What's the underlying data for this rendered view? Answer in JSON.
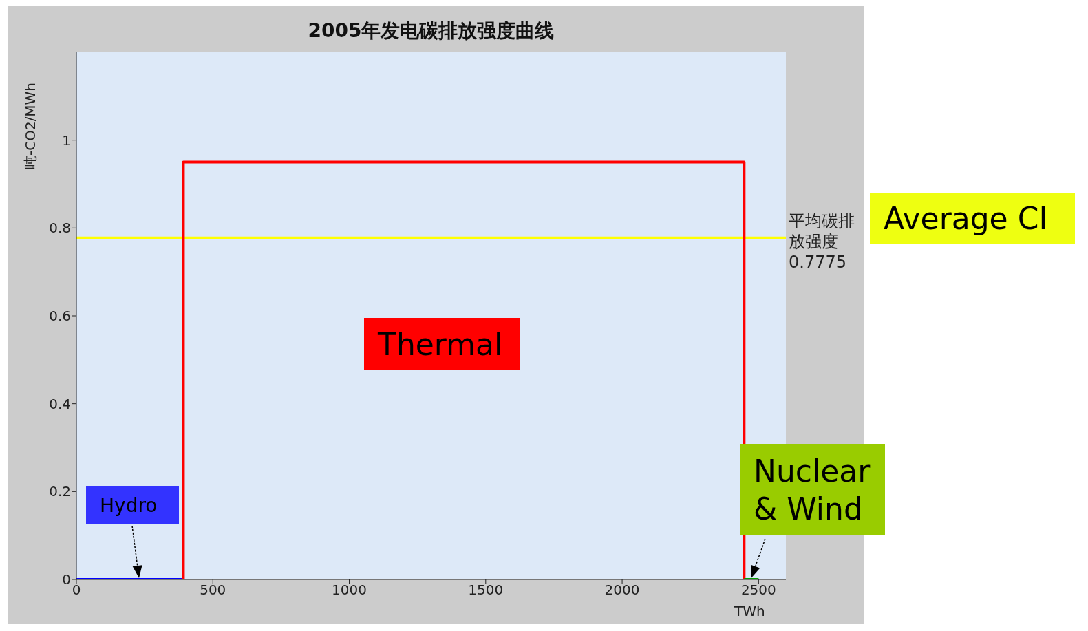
{
  "chart_data": {
    "type": "line",
    "title": "2005年发电碳排放强度曲线",
    "ylabel": "吨-CO2/MWh",
    "xlabel": "TWh",
    "series": [
      {
        "color": "#0000ff",
        "x": [
          0,
          392
        ],
        "values": [
          0,
          0
        ]
      },
      {
        "color": "#ff0000",
        "x": [
          392,
          392,
          2447,
          2447
        ],
        "values": [
          0,
          0.95,
          0.95,
          0
        ]
      },
      {
        "color": "#00a000",
        "x": [
          2447,
          2500
        ],
        "values": [
          0,
          0
        ]
      }
    ],
    "ref_lines": [
      {
        "axis": "y",
        "value": 0.7775,
        "label": "平均碳排放强度 0.7775",
        "color": "#ffff00"
      }
    ],
    "annotations": [
      "Hydro",
      "Thermal",
      {
        "text": "Nuclear & Wind",
        "x": 2473,
        "y": 0
      },
      "Average CI"
    ],
    "xlim": [
      0,
      2600
    ],
    "xticks": [
      0,
      500,
      1000,
      1500,
      2000,
      2500
    ],
    "ylim": [
      0,
      1.2
    ],
    "yticks": [
      0,
      0.2,
      0.4,
      0.6,
      0.8,
      1
    ],
    "grid": false,
    "legend": false,
    "marker": "none",
    "line_style": "solid"
  }
}
